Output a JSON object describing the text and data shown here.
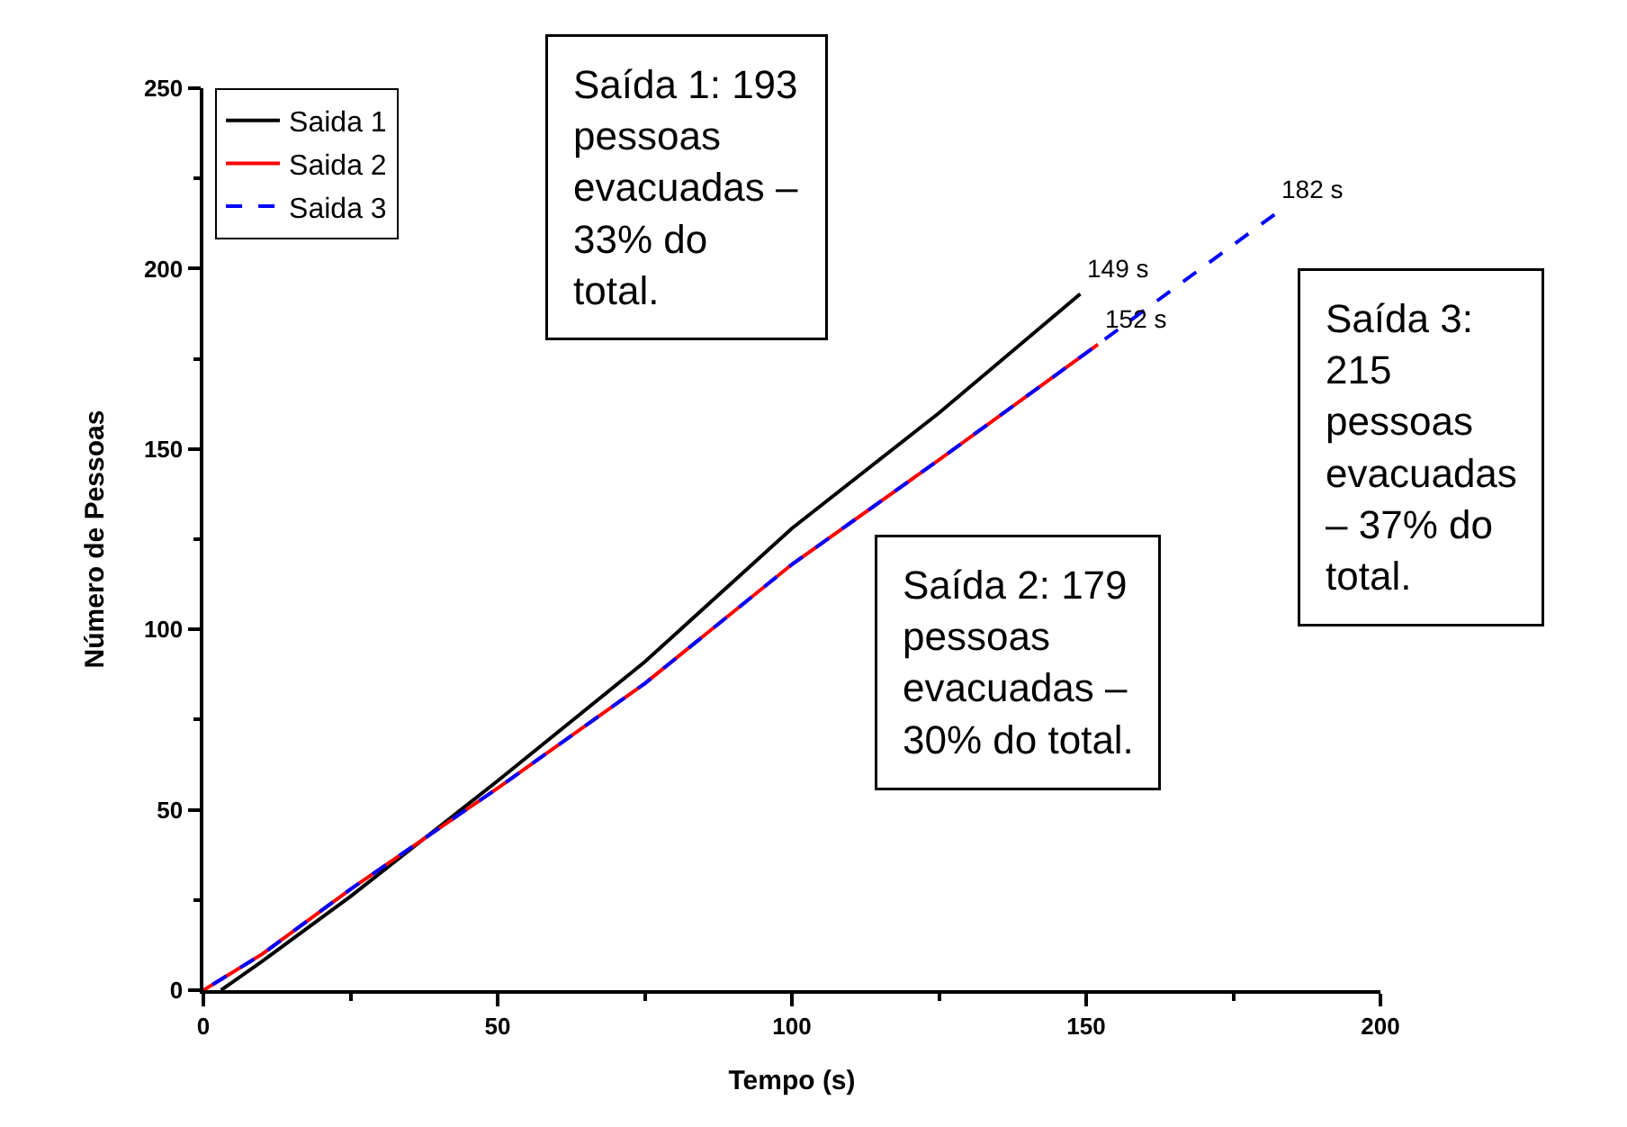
{
  "chart_data": {
    "type": "line",
    "xlabel": "Tempo (s)",
    "ylabel": "Número de Pessoas",
    "xlim": [
      0,
      200
    ],
    "ylim": [
      0,
      250
    ],
    "xticks": [
      0,
      {
        "value": 25,
        "label": null
      },
      50,
      {
        "value": 75,
        "label": null
      },
      100,
      {
        "value": 125,
        "label": null
      },
      150,
      {
        "value": 175,
        "label": null
      },
      200
    ],
    "yticks": [
      0,
      {
        "value": 25,
        "label": null
      },
      50,
      {
        "value": 75,
        "label": null
      },
      100,
      {
        "value": 125,
        "label": null
      },
      150,
      {
        "value": 175,
        "label": null
      },
      200,
      {
        "value": 225,
        "label": null
      },
      250
    ],
    "series": [
      {
        "name": "Saida 1",
        "color": "#000000",
        "line_style": "solid",
        "x": [
          3,
          10,
          25,
          50,
          75,
          100,
          125,
          149
        ],
        "values": [
          0,
          8,
          26,
          58,
          91,
          128,
          160,
          193
        ]
      },
      {
        "name": "Saida 2",
        "color": "#ff0000",
        "line_style": "solid",
        "x": [
          0,
          10,
          25,
          50,
          75,
          100,
          125,
          152
        ],
        "values": [
          0,
          10,
          28,
          56,
          85,
          118,
          147,
          179
        ]
      },
      {
        "name": "Saida 3",
        "color": "#0000ff",
        "line_style": "dashed",
        "x": [
          0,
          10,
          25,
          50,
          75,
          100,
          125,
          152,
          182
        ],
        "values": [
          0,
          10,
          28,
          56,
          85,
          118,
          147,
          179,
          215
        ]
      }
    ],
    "legend": "top left",
    "marker": "none",
    "annotations": [
      {
        "text": "149 s",
        "x": 149,
        "y": 193
      },
      {
        "text": "152 s",
        "x": 152,
        "y": 179
      },
      {
        "text": "182 s",
        "x": 182,
        "y": 215
      },
      "Saída 1: 193 pessoas evacuadas – 33% do total.",
      "Saída 2: 179 pessoas evacuadas – 30% do total.",
      "Saída 3: 215 pessoas evacuadas – 37% do total."
    ]
  }
}
